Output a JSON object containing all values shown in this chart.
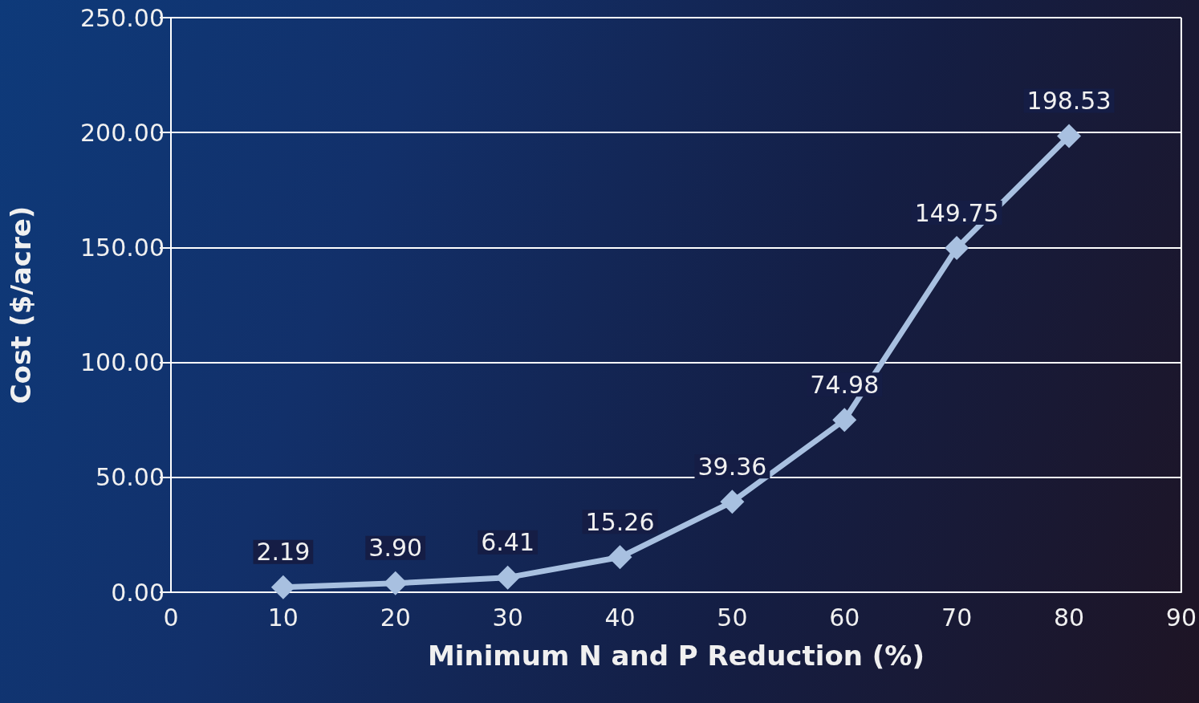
{
  "chart_data": {
    "type": "line",
    "xlabel": "Minimum N and P Reduction (%)",
    "ylabel": "Cost ($/acre)",
    "x": [
      10,
      20,
      30,
      40,
      50,
      60,
      70,
      80
    ],
    "series": [
      {
        "color": "#a8c0e0",
        "values": [
          2.19,
          3.9,
          6.41,
          15.26,
          39.36,
          74.98,
          149.75,
          198.53
        ],
        "value_labels": [
          "2.19",
          "3.90",
          "6.41",
          "15.26",
          "39.36",
          "74.98",
          "149.75",
          "198.53"
        ]
      }
    ],
    "xlim": [
      0,
      90
    ],
    "xticks": [
      0,
      10,
      20,
      30,
      40,
      50,
      60,
      70,
      80,
      90
    ],
    "ylim": [
      0,
      250
    ],
    "yticks": [
      {
        "value": 0,
        "label": "0.00"
      },
      {
        "value": 50,
        "label": "50.00"
      },
      {
        "value": 100,
        "label": "100.00"
      },
      {
        "value": 150,
        "label": "150.00"
      },
      {
        "value": 200,
        "label": "200.00"
      },
      {
        "value": 250,
        "label": "250.00"
      }
    ],
    "grid": "y",
    "marker": "diamond",
    "line_style": "solid"
  }
}
